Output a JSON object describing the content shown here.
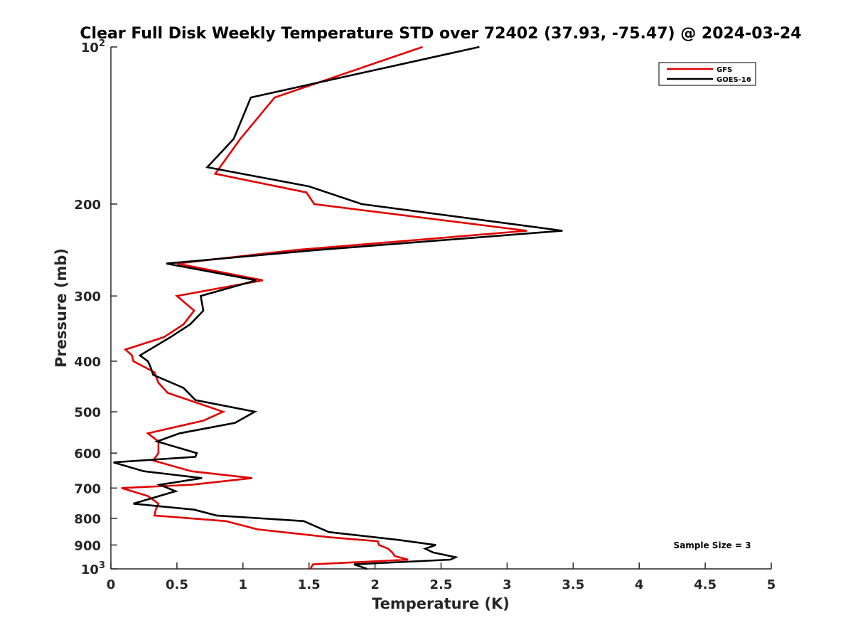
{
  "chart_data": {
    "type": "line",
    "title": "Clear Full Disk Weekly Temperature STD over 72402 (37.93, -75.47) @ 2024-03-24",
    "xlabel": "Temperature (K)",
    "ylabel": "Pressure (mb)",
    "xlim": [
      0,
      5
    ],
    "ylim": [
      100,
      1000
    ],
    "yscale": "log",
    "y_reversed": true,
    "xticks": [
      0,
      0.5,
      1,
      1.5,
      2,
      2.5,
      3,
      3.5,
      4,
      4.5,
      5
    ],
    "xtick_labels": [
      "0",
      "0.5",
      "1",
      "1.5",
      "2",
      "2.5",
      "3",
      "3.5",
      "4",
      "4.5",
      "5"
    ],
    "yticks": [
      {
        "value": 100,
        "label": "10",
        "sup": "2"
      },
      {
        "value": 200,
        "label": "200",
        "sup": ""
      },
      {
        "value": 300,
        "label": "300",
        "sup": ""
      },
      {
        "value": 400,
        "label": "400",
        "sup": ""
      },
      {
        "value": 500,
        "label": "500",
        "sup": ""
      },
      {
        "value": 600,
        "label": "600",
        "sup": ""
      },
      {
        "value": 700,
        "label": "700",
        "sup": ""
      },
      {
        "value": 800,
        "label": "800",
        "sup": ""
      },
      {
        "value": 900,
        "label": "900",
        "sup": ""
      },
      {
        "value": 1000,
        "label": "10",
        "sup": "3"
      }
    ],
    "legend_position": "top-right",
    "annotation": "Sample Size = 3",
    "series": [
      {
        "name": "GFS",
        "color": "#e00000",
        "temperature": [
          2.36,
          1.24,
          0.98,
          0.79,
          1.48,
          1.54,
          3.15,
          1.4,
          0.5,
          1.15,
          0.5,
          0.63,
          0.55,
          0.4,
          0.11,
          0.16,
          0.17,
          0.33,
          0.36,
          0.43,
          0.85,
          0.7,
          0.28,
          0.36,
          0.36,
          0.32,
          0.61,
          1.07,
          0.61,
          0.08,
          0.28,
          0.36,
          0.34,
          0.33,
          0.87,
          1.11,
          1.66,
          2.02,
          2.03,
          2.1,
          2.13,
          2.15,
          2.25,
          1.53,
          1.51
        ],
        "pressure": [
          100,
          125,
          150,
          175,
          190,
          200,
          225,
          245,
          260,
          280,
          300,
          320,
          340,
          360,
          380,
          390,
          400,
          420,
          440,
          460,
          500,
          520,
          550,
          570,
          600,
          620,
          650,
          670,
          690,
          700,
          725,
          750,
          770,
          790,
          810,
          840,
          870,
          885,
          900,
          915,
          930,
          945,
          960,
          980,
          1000
        ]
      },
      {
        "name": "GOES-16",
        "color": "#000000",
        "temperature": [
          2.79,
          1.06,
          0.93,
          0.73,
          1.5,
          1.9,
          3.42,
          1.56,
          0.42,
          1.1,
          0.68,
          0.7,
          0.6,
          0.45,
          0.22,
          0.28,
          0.3,
          0.32,
          0.55,
          0.64,
          1.09,
          0.94,
          0.52,
          0.35,
          0.65,
          0.64,
          0.02,
          0.25,
          0.69,
          0.37,
          0.49,
          0.17,
          0.63,
          0.8,
          1.46,
          1.65,
          2.18,
          2.46,
          2.38,
          2.44,
          2.61,
          2.57,
          1.84,
          1.94
        ],
        "pressure": [
          100,
          125,
          150,
          170,
          185,
          200,
          225,
          245,
          260,
          280,
          300,
          320,
          340,
          360,
          390,
          400,
          410,
          425,
          450,
          475,
          500,
          525,
          550,
          570,
          600,
          610,
          625,
          650,
          670,
          690,
          710,
          750,
          770,
          790,
          810,
          850,
          880,
          900,
          915,
          930,
          950,
          960,
          980,
          1000
        ]
      }
    ]
  }
}
